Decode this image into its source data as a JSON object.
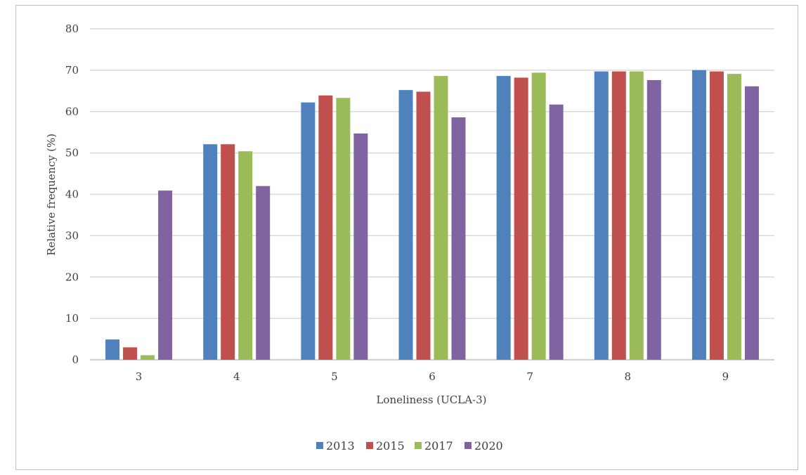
{
  "chart_data": {
    "type": "bar",
    "title": "",
    "xlabel": "Loneliness (UCLA-3)",
    "ylabel": "Relative frequency (%)",
    "ylim": [
      0,
      80
    ],
    "yticks": [
      "0",
      "10",
      "20",
      "30",
      "40",
      "50",
      "60",
      "70",
      "80"
    ],
    "grid": true,
    "legend_position": "bottom",
    "categories": [
      "3",
      "4",
      "5",
      "6",
      "7",
      "8",
      "9"
    ],
    "series": [
      {
        "name": "2013",
        "color": "#4f81bd",
        "values": [
          4.9,
          52.1,
          62.2,
          65.2,
          68.6,
          69.7,
          70.0
        ]
      },
      {
        "name": "2015",
        "color": "#c0504d",
        "values": [
          3.0,
          52.1,
          63.9,
          64.8,
          68.2,
          69.7,
          69.7
        ]
      },
      {
        "name": "2017",
        "color": "#9bbb59",
        "values": [
          1.1,
          50.4,
          63.3,
          68.6,
          69.4,
          69.7,
          69.1
        ]
      },
      {
        "name": "2020",
        "color": "#8064a2",
        "values": [
          40.9,
          42.0,
          54.7,
          58.6,
          61.7,
          67.6,
          66.1
        ]
      }
    ]
  }
}
